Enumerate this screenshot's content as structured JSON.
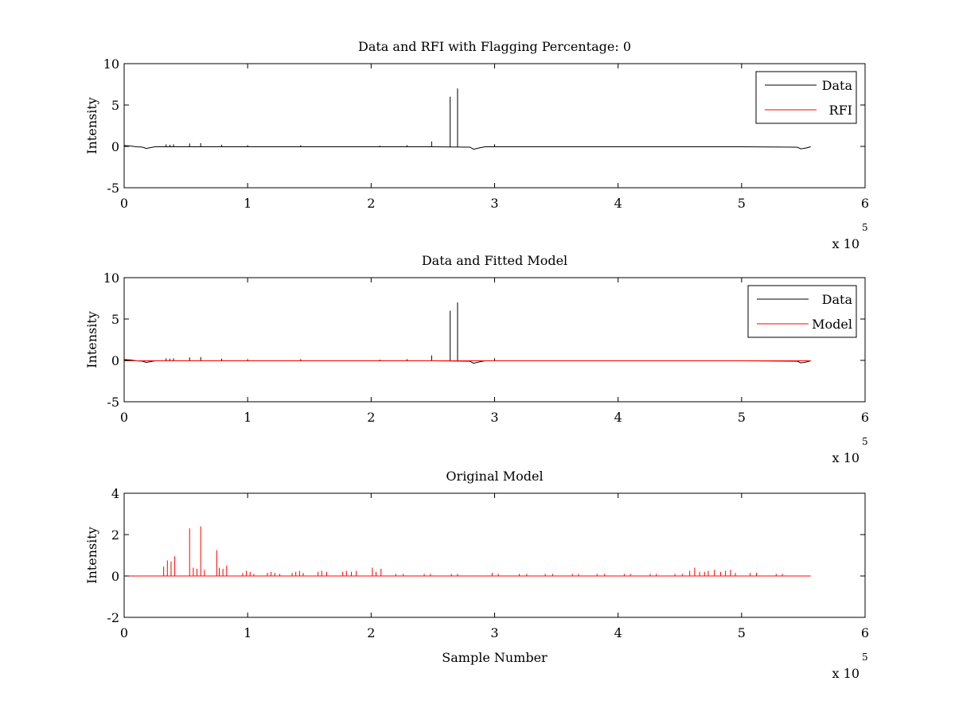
{
  "figure": {
    "background": "#ffffff"
  },
  "chart_data": [
    {
      "type": "line",
      "title": "Data and RFI with Flagging Percentage: 0",
      "xlabel": "",
      "ylabel": "Intensity",
      "xlim": [
        0,
        600000
      ],
      "ylim": [
        -5,
        10
      ],
      "xticks": [
        0,
        1,
        2,
        3,
        4,
        5,
        6
      ],
      "yticks": [
        -5,
        0,
        5,
        10
      ],
      "x_multiplier": "x 10",
      "x_multiplier_exp": "5",
      "grid": false,
      "legend_position": "top-right",
      "series": [
        {
          "name": "Data",
          "color": "#000000",
          "baseline": [
            [
              0,
              0.1
            ],
            [
              5000,
              0.05
            ],
            [
              10000,
              -0.05
            ],
            [
              15000,
              -0.1
            ],
            [
              18000,
              -0.25
            ],
            [
              21000,
              -0.15
            ],
            [
              25000,
              -0.05
            ],
            [
              40000,
              -0.05
            ],
            [
              100000,
              -0.05
            ],
            [
              200000,
              -0.05
            ],
            [
              250000,
              -0.05
            ],
            [
              280000,
              -0.1
            ],
            [
              283000,
              -0.35
            ],
            [
              287000,
              -0.2
            ],
            [
              292000,
              -0.05
            ],
            [
              400000,
              -0.05
            ],
            [
              500000,
              -0.05
            ],
            [
              545000,
              -0.1
            ],
            [
              548000,
              -0.3
            ],
            [
              552000,
              -0.2
            ],
            [
              556000,
              -0.05
            ]
          ],
          "spikes": [
            [
              34000,
              0.25
            ],
            [
              37000,
              0.2
            ],
            [
              40000,
              0.25
            ],
            [
              53000,
              0.35
            ],
            [
              62000,
              0.4
            ],
            [
              79000,
              0.2
            ],
            [
              100000,
              0.15
            ],
            [
              143000,
              0.15
            ],
            [
              207000,
              0.1
            ],
            [
              229000,
              0.15
            ],
            [
              249000,
              0.6
            ],
            [
              264000,
              6.0
            ],
            [
              270000,
              7.0
            ],
            [
              300000,
              0.25
            ]
          ],
          "xrange": [
            0,
            556000
          ]
        },
        {
          "name": "RFI",
          "color": "#ff0000",
          "values": []
        }
      ]
    },
    {
      "type": "line",
      "title": "Data and Fitted Model",
      "xlabel": "",
      "ylabel": "Intensity",
      "xlim": [
        0,
        600000
      ],
      "ylim": [
        -5,
        10
      ],
      "xticks": [
        0,
        1,
        2,
        3,
        4,
        5,
        6
      ],
      "yticks": [
        -5,
        0,
        5,
        10
      ],
      "x_multiplier": "x 10",
      "x_multiplier_exp": "5",
      "grid": false,
      "legend_position": "top-right",
      "series": [
        {
          "name": "Data",
          "color": "#000000",
          "baseline": [
            [
              0,
              0.1
            ],
            [
              5000,
              0.05
            ],
            [
              10000,
              -0.05
            ],
            [
              15000,
              -0.1
            ],
            [
              18000,
              -0.25
            ],
            [
              21000,
              -0.15
            ],
            [
              25000,
              -0.05
            ],
            [
              40000,
              -0.05
            ],
            [
              100000,
              -0.05
            ],
            [
              200000,
              -0.05
            ],
            [
              250000,
              -0.05
            ],
            [
              280000,
              -0.1
            ],
            [
              283000,
              -0.35
            ],
            [
              287000,
              -0.2
            ],
            [
              292000,
              -0.05
            ],
            [
              400000,
              -0.05
            ],
            [
              500000,
              -0.05
            ],
            [
              545000,
              -0.1
            ],
            [
              548000,
              -0.3
            ],
            [
              552000,
              -0.2
            ],
            [
              556000,
              -0.05
            ]
          ],
          "spikes": [
            [
              34000,
              0.25
            ],
            [
              37000,
              0.2
            ],
            [
              40000,
              0.25
            ],
            [
              53000,
              0.35
            ],
            [
              62000,
              0.4
            ],
            [
              79000,
              0.2
            ],
            [
              100000,
              0.15
            ],
            [
              143000,
              0.15
            ],
            [
              207000,
              0.1
            ],
            [
              229000,
              0.15
            ],
            [
              249000,
              0.6
            ],
            [
              264000,
              6.0
            ],
            [
              270000,
              7.0
            ],
            [
              300000,
              0.25
            ]
          ],
          "xrange": [
            0,
            556000
          ]
        },
        {
          "name": "Model",
          "color": "#ff0000",
          "baseline": [
            [
              0,
              -0.05
            ],
            [
              556000,
              -0.05
            ]
          ],
          "spikes": [],
          "xrange": [
            0,
            556000
          ]
        }
      ]
    },
    {
      "type": "line",
      "title": "Original Model",
      "xlabel": "Sample Number",
      "ylabel": "Intensity",
      "xlim": [
        0,
        600000
      ],
      "ylim": [
        -2,
        4
      ],
      "xticks": [
        0,
        1,
        2,
        3,
        4,
        5,
        6
      ],
      "yticks": [
        -2,
        0,
        2,
        4
      ],
      "x_multiplier": "x 10",
      "x_multiplier_exp": "5",
      "grid": false,
      "series": [
        {
          "color": "#ff0000",
          "baseline": [
            [
              0,
              0
            ],
            [
              556000,
              0
            ]
          ],
          "spikes": [
            [
              32000,
              0.45
            ],
            [
              35000,
              0.75
            ],
            [
              38000,
              0.7
            ],
            [
              41000,
              0.95
            ],
            [
              53000,
              2.3
            ],
            [
              56000,
              0.4
            ],
            [
              59000,
              0.35
            ],
            [
              62000,
              2.4
            ],
            [
              65000,
              0.3
            ],
            [
              75000,
              1.25
            ],
            [
              77000,
              0.4
            ],
            [
              80000,
              0.35
            ],
            [
              83000,
              0.5
            ],
            [
              96000,
              0.15
            ],
            [
              99000,
              0.25
            ],
            [
              102000,
              0.2
            ],
            [
              105000,
              0.1
            ],
            [
              116000,
              0.15
            ],
            [
              119000,
              0.2
            ],
            [
              122000,
              0.15
            ],
            [
              126000,
              0.1
            ],
            [
              136000,
              0.15
            ],
            [
              139000,
              0.2
            ],
            [
              142000,
              0.25
            ],
            [
              145000,
              0.15
            ],
            [
              157000,
              0.2
            ],
            [
              160000,
              0.25
            ],
            [
              164000,
              0.2
            ],
            [
              177000,
              0.2
            ],
            [
              180000,
              0.25
            ],
            [
              184000,
              0.2
            ],
            [
              188000,
              0.25
            ],
            [
              201000,
              0.4
            ],
            [
              204000,
              0.2
            ],
            [
              208000,
              0.35
            ],
            [
              220000,
              0.1
            ],
            [
              226000,
              0.1
            ],
            [
              243000,
              0.1
            ],
            [
              248000,
              0.1
            ],
            [
              265000,
              0.1
            ],
            [
              270000,
              0.1
            ],
            [
              298000,
              0.15
            ],
            [
              303000,
              0.1
            ],
            [
              320000,
              0.1
            ],
            [
              326000,
              0.1
            ],
            [
              341000,
              0.1
            ],
            [
              347000,
              0.1
            ],
            [
              363000,
              0.1
            ],
            [
              368000,
              0.1
            ],
            [
              383000,
              0.1
            ],
            [
              389000,
              0.1
            ],
            [
              405000,
              0.1
            ],
            [
              410000,
              0.1
            ],
            [
              426000,
              0.1
            ],
            [
              431000,
              0.1
            ],
            [
              446000,
              0.1
            ],
            [
              452000,
              0.1
            ],
            [
              458000,
              0.25
            ],
            [
              462000,
              0.4
            ],
            [
              466000,
              0.2
            ],
            [
              470000,
              0.2
            ],
            [
              473000,
              0.25
            ],
            [
              478000,
              0.3
            ],
            [
              483000,
              0.2
            ],
            [
              487000,
              0.25
            ],
            [
              491000,
              0.3
            ],
            [
              495000,
              0.15
            ],
            [
              507000,
              0.15
            ],
            [
              512000,
              0.15
            ],
            [
              528000,
              0.1
            ],
            [
              533000,
              0.1
            ]
          ],
          "xrange": [
            0,
            556000
          ]
        }
      ]
    }
  ]
}
